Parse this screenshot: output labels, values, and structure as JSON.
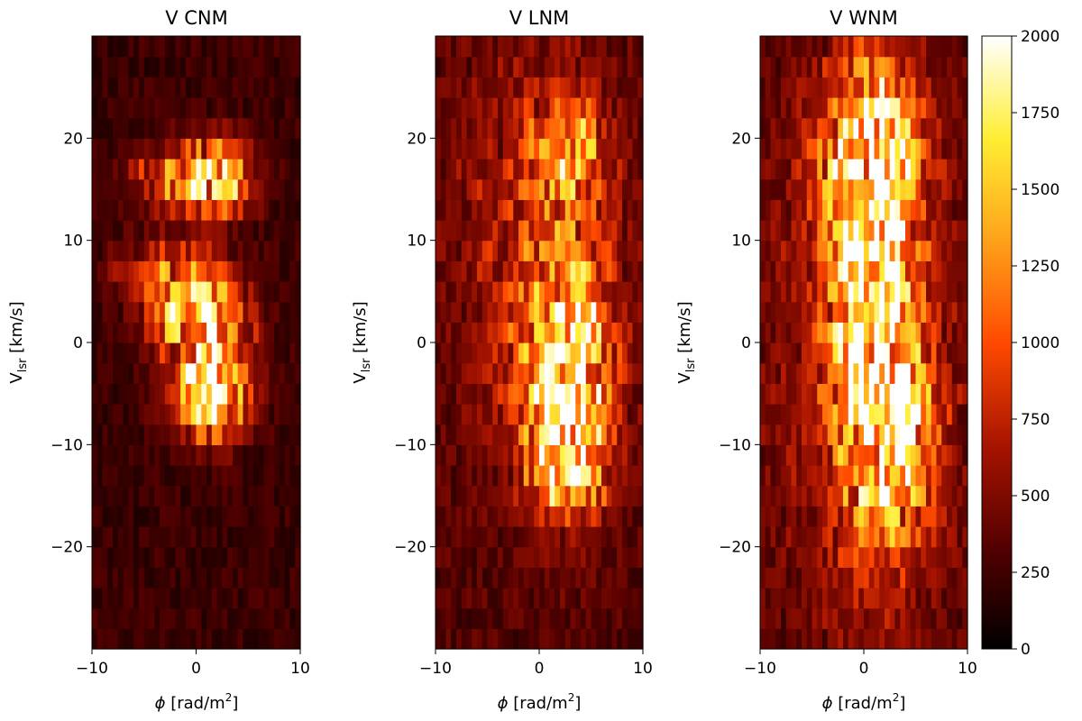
{
  "colors": {
    "colormap_name": "afmhot",
    "stops": [
      "#000000",
      "#550000",
      "#a81400",
      "#ff4a00",
      "#ffa21a",
      "#ffee33",
      "#ffffff"
    ]
  },
  "chart_data": {
    "type": "heatmap",
    "x_values": [
      -10,
      -9.5,
      -9,
      -8.5,
      -8,
      -7.5,
      -7,
      -6.5,
      -6,
      -5.5,
      -5,
      -4.5,
      -4,
      -3.5,
      -3,
      -2.5,
      -2,
      -1.5,
      -1,
      -0.5,
      0,
      0.5,
      1,
      1.5,
      2,
      2.5,
      3,
      3.5,
      4,
      4.5,
      5,
      5.5,
      6,
      6.5,
      7,
      7.5,
      8,
      8.5,
      9,
      9.5
    ],
    "y_values": [
      -29,
      -27,
      -25,
      -23,
      -21,
      -19,
      -17,
      -15,
      -13,
      -11,
      -9,
      -7,
      -5,
      -3,
      -1,
      1,
      3,
      5,
      7,
      9,
      11,
      13,
      15,
      17,
      19,
      21,
      23,
      25,
      27,
      29
    ],
    "xlim": [
      -10,
      10
    ],
    "ylim": [
      -30,
      30
    ],
    "xticks": [
      "−10",
      "0",
      "10"
    ],
    "yticks": [
      "−20",
      "−10",
      "0",
      "10",
      "20"
    ],
    "xlabel_symbol": "ϕ",
    "xlabel_text": " [rad/m",
    "xlabel_sup": "2",
    "xlabel_end": "]",
    "ylabel_main": "V",
    "ylabel_sub": "lsr",
    "ylabel_end": " [km/s]",
    "colorbar": {
      "vmin": 0,
      "vmax": 2000,
      "ticks": [
        "0",
        "250",
        "500",
        "750",
        "1000",
        "1250",
        "1500",
        "1750",
        "2000"
      ]
    },
    "panels": [
      {
        "title": "V CNM",
        "peak": 1900,
        "noise_floor": 120,
        "components": [
          {
            "x": 1.5,
            "y": 16,
            "sx": 2.5,
            "sy": 2.5,
            "amp": 1.0
          },
          {
            "x": 0.5,
            "y": 2,
            "sx": 3.0,
            "sy": 2.5,
            "amp": 0.95
          },
          {
            "x": 1.5,
            "y": -5,
            "sx": 2.5,
            "sy": 3.0,
            "amp": 1.0
          },
          {
            "x": -2.0,
            "y": 7,
            "sx": 3.5,
            "sy": 2.0,
            "amp": 0.55
          },
          {
            "x": -4.0,
            "y": 16,
            "sx": 2.0,
            "sy": 2.0,
            "amp": 0.35
          }
        ]
      },
      {
        "title": "V LNM",
        "peak": 1750,
        "noise_floor": 160,
        "components": [
          {
            "x": 2.5,
            "y": -3,
            "sx": 3.0,
            "sy": 8.0,
            "amp": 0.95
          },
          {
            "x": 3.0,
            "y": -12,
            "sx": 2.5,
            "sy": 3.0,
            "amp": 0.6
          },
          {
            "x": 3.0,
            "y": 19,
            "sx": 2.5,
            "sy": 3.5,
            "amp": 0.55
          },
          {
            "x": 0.0,
            "y": 10,
            "sx": 6.0,
            "sy": 14.0,
            "amp": 0.3
          }
        ]
      },
      {
        "title": "V WNM",
        "peak": 1850,
        "noise_floor": 170,
        "components": [
          {
            "x": 1.0,
            "y": 5,
            "sx": 2.5,
            "sy": 13.0,
            "amp": 1.0
          },
          {
            "x": 3.5,
            "y": -10,
            "sx": 2.5,
            "sy": 6.0,
            "amp": 0.6
          },
          {
            "x": 0.5,
            "y": 18,
            "sx": 3.5,
            "sy": 5.0,
            "amp": 0.55
          },
          {
            "x": 0.0,
            "y": 0,
            "sx": 6.0,
            "sy": 20.0,
            "amp": 0.3
          }
        ]
      }
    ]
  }
}
